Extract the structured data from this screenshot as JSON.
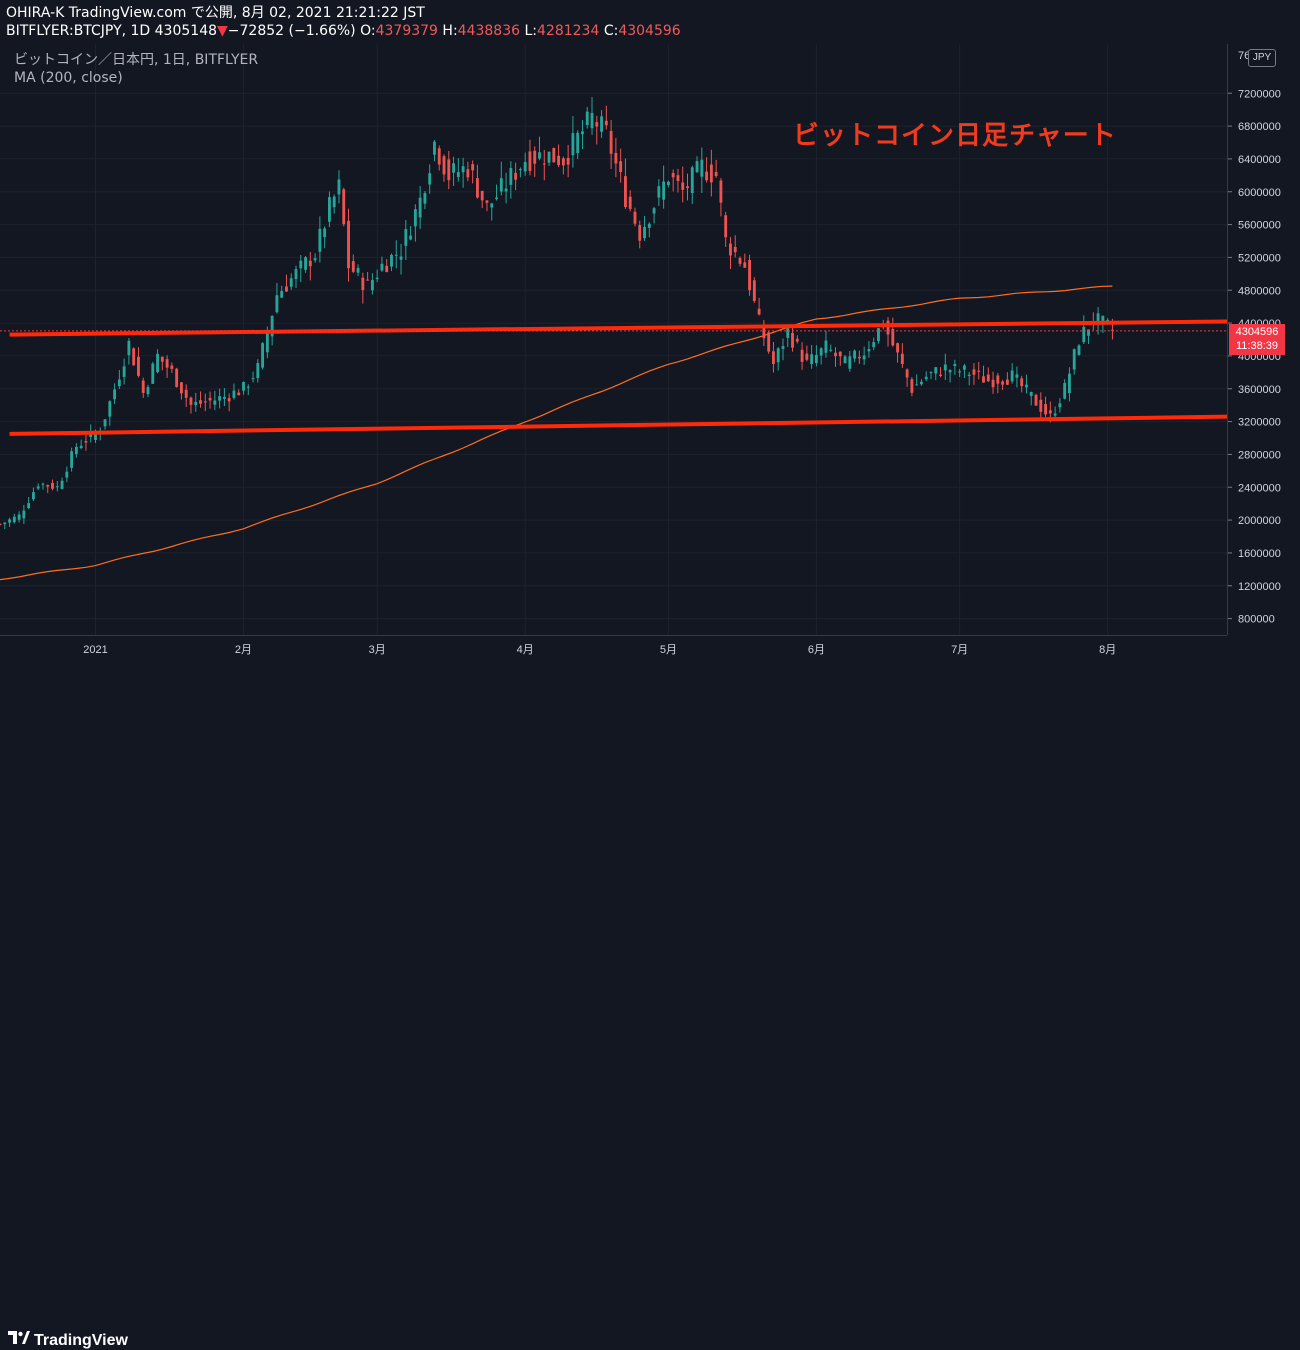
{
  "header": {
    "line1": "OHIRA-K TradingView.com で公開, 8月 02, 2021 21:21:22 JST",
    "symbol": "BITFLYER:BTCJPY, 1D 4305148",
    "change_arrow": "▼",
    "change": "−72852 (−1.66%)",
    "o_label": "O:",
    "o_value": "4379379",
    "h_label": "H:",
    "h_value": "4438836",
    "l_label": "L:",
    "l_value": "4281234",
    "c_label": "C:",
    "c_value": "4304596"
  },
  "legend": {
    "title": "ビットコイン／日本円, 1日, BITFLYER",
    "indicator": "MA (200, close)"
  },
  "annotation": "ビットコイン日足チャート",
  "price_axis": {
    "currency": "JPY",
    "top_partial_label": "76",
    "last_price": "4304596",
    "countdown": "11:38:39"
  },
  "footer": {
    "brand": "TradingView"
  },
  "colors": {
    "up": "#26a69a",
    "down": "#ef5350",
    "ma": "#ff6d1f",
    "trendline": "#ff2a0a",
    "background": "#131722"
  },
  "chart_data": {
    "type": "candlestick",
    "symbol": "BITFLYER:BTCJPY",
    "interval": "1D",
    "ylim": [
      600000,
      7800000
    ],
    "y_ticks": [
      "7200000",
      "6800000",
      "6400000",
      "6000000",
      "5600000",
      "5200000",
      "4800000",
      "4400000",
      "4000000",
      "3600000",
      "3200000",
      "2800000",
      "2400000",
      "2000000",
      "1600000",
      "1200000",
      "800000"
    ],
    "x_ticks": [
      "2021",
      "2月",
      "3月",
      "4月",
      "5月",
      "6月",
      "7月",
      "8月"
    ],
    "x_tick_dates": [
      "2021-01-01",
      "2021-02-01",
      "2021-03-01",
      "2021-04-01",
      "2021-05-01",
      "2021-06-01",
      "2021-07-01",
      "2021-08-01"
    ],
    "x_range": [
      "2020-12-12",
      "2021-08-26"
    ],
    "close_series": [
      [
        "2020-12-12",
        1950000
      ],
      [
        "2020-12-16",
        2050000
      ],
      [
        "2020-12-20",
        2450000
      ],
      [
        "2020-12-24",
        2400000
      ],
      [
        "2020-12-28",
        2900000
      ],
      [
        "2021-01-02",
        3100000
      ],
      [
        "2021-01-05",
        3600000
      ],
      [
        "2021-01-08",
        4150000
      ],
      [
        "2021-01-11",
        3550000
      ],
      [
        "2021-01-14",
        4000000
      ],
      [
        "2021-01-17",
        3800000
      ],
      [
        "2021-01-21",
        3400000
      ],
      [
        "2021-01-25",
        3450000
      ],
      [
        "2021-01-28",
        3500000
      ],
      [
        "2021-02-01",
        3600000
      ],
      [
        "2021-02-04",
        3850000
      ],
      [
        "2021-02-08",
        4750000
      ],
      [
        "2021-02-12",
        5000000
      ],
      [
        "2021-02-16",
        5250000
      ],
      [
        "2021-02-19",
        5800000
      ],
      [
        "2021-02-21",
        6050000
      ],
      [
        "2021-02-23",
        5100000
      ],
      [
        "2021-02-27",
        4850000
      ],
      [
        "2021-03-02",
        5100000
      ],
      [
        "2021-03-06",
        5300000
      ],
      [
        "2021-03-10",
        5900000
      ],
      [
        "2021-03-13",
        6600000
      ],
      [
        "2021-03-16",
        6200000
      ],
      [
        "2021-03-20",
        6300000
      ],
      [
        "2021-03-24",
        5800000
      ],
      [
        "2021-03-28",
        6100000
      ],
      [
        "2021-04-01",
        6400000
      ],
      [
        "2021-04-05",
        6450000
      ],
      [
        "2021-04-09",
        6400000
      ],
      [
        "2021-04-12",
        6650000
      ],
      [
        "2021-04-15",
        6900000
      ],
      [
        "2021-04-18",
        6700000
      ],
      [
        "2021-04-22",
        5950000
      ],
      [
        "2021-04-25",
        5500000
      ],
      [
        "2021-04-28",
        5850000
      ],
      [
        "2021-05-01",
        6200000
      ],
      [
        "2021-05-04",
        6000000
      ],
      [
        "2021-05-08",
        6300000
      ],
      [
        "2021-05-11",
        6200000
      ],
      [
        "2021-05-13",
        5400000
      ],
      [
        "2021-05-17",
        5100000
      ],
      [
        "2021-05-20",
        4400000
      ],
      [
        "2021-05-23",
        3900000
      ],
      [
        "2021-05-26",
        4300000
      ],
      [
        "2021-05-30",
        3900000
      ],
      [
        "2021-06-03",
        4100000
      ],
      [
        "2021-06-07",
        3900000
      ],
      [
        "2021-06-11",
        4050000
      ],
      [
        "2021-06-15",
        4400000
      ],
      [
        "2021-06-18",
        4000000
      ],
      [
        "2021-06-21",
        3600000
      ],
      [
        "2021-06-24",
        3750000
      ],
      [
        "2021-06-28",
        3850000
      ],
      [
        "2021-07-03",
        3800000
      ],
      [
        "2021-07-07",
        3700000
      ],
      [
        "2021-07-12",
        3750000
      ],
      [
        "2021-07-16",
        3500000
      ],
      [
        "2021-07-20",
        3250000
      ],
      [
        "2021-07-23",
        3600000
      ],
      [
        "2021-07-26",
        4200000
      ],
      [
        "2021-07-29",
        4450000
      ],
      [
        "2021-08-01",
        4350000
      ],
      [
        "2021-08-02",
        4304596
      ]
    ],
    "ma200": [
      [
        "2020-12-12",
        1280000
      ],
      [
        "2021-01-01",
        1450000
      ],
      [
        "2021-02-01",
        1900000
      ],
      [
        "2021-03-01",
        2450000
      ],
      [
        "2021-04-01",
        3200000
      ],
      [
        "2021-05-01",
        3900000
      ],
      [
        "2021-06-01",
        4450000
      ],
      [
        "2021-07-01",
        4700000
      ],
      [
        "2021-08-02",
        4850000
      ]
    ],
    "trendlines": [
      {
        "from": [
          "2020-12-14",
          4260000
        ],
        "to": [
          "2021-08-26",
          4420000
        ]
      },
      {
        "from": [
          "2020-12-14",
          3050000
        ],
        "to": [
          "2021-08-26",
          3260000
        ]
      }
    ]
  }
}
